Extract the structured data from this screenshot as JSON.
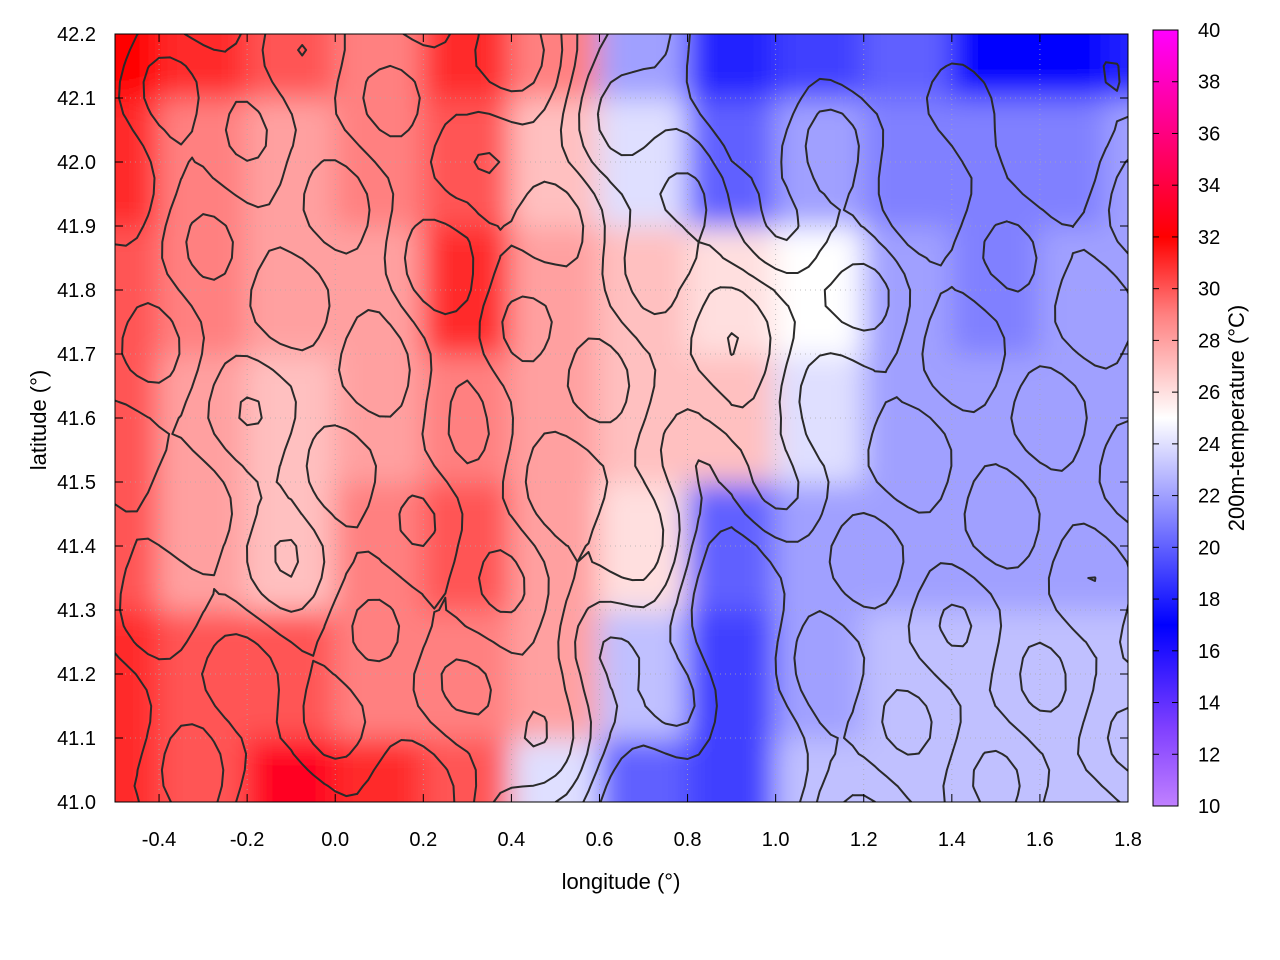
{
  "chart_data": {
    "type": "heatmap",
    "title": "",
    "xlabel": "longitude (°)",
    "ylabel": "latitude (°)",
    "colorbar_label": "200m-temperature (°C)",
    "xlim": [
      -0.5,
      1.8
    ],
    "ylim": [
      41.0,
      42.2
    ],
    "xticks": [
      "-0.4",
      "-0.2",
      "0.0",
      "0.2",
      "0.4",
      "0.6",
      "0.8",
      "1.0",
      "1.2",
      "1.4",
      "1.6",
      "1.8"
    ],
    "yticks": [
      "41.0",
      "41.1",
      "41.2",
      "41.3",
      "41.4",
      "41.5",
      "41.6",
      "41.7",
      "41.8",
      "41.9",
      "42.0",
      "42.1",
      "42.2"
    ],
    "colorbar_range": [
      10,
      40
    ],
    "colorbar_ticks": [
      "10",
      "12",
      "14",
      "16",
      "18",
      "20",
      "22",
      "24",
      "26",
      "28",
      "30",
      "32",
      "34",
      "36",
      "38",
      "40"
    ],
    "colormap": [
      {
        "value": 10,
        "color": "#c080ff"
      },
      {
        "value": 13,
        "color": "#8040ff"
      },
      {
        "value": 17,
        "color": "#0000ff"
      },
      {
        "value": 21,
        "color": "#8080ff"
      },
      {
        "value": 25,
        "color": "#ffffff"
      },
      {
        "value": 29,
        "color": "#ff8080"
      },
      {
        "value": 32,
        "color": "#ff0000"
      },
      {
        "value": 36,
        "color": "#ff0080"
      },
      {
        "value": 40,
        "color": "#ff00ff"
      }
    ],
    "grid": true,
    "grid_style": "dotted",
    "contours": "topography isolines (black)",
    "field_samples": {
      "lon": [
        -0.5,
        -0.3,
        -0.1,
        0.1,
        0.3,
        0.5,
        0.7,
        0.9,
        1.1,
        1.3,
        1.5,
        1.7,
        1.8
      ],
      "lat": [
        41.0,
        41.2,
        41.4,
        41.6,
        41.8,
        42.0,
        42.2
      ],
      "temperature": [
        [
          31,
          30,
          33,
          31,
          30,
          24,
          20,
          19,
          23,
          23,
          23,
          23,
          23
        ],
        [
          31,
          30,
          30,
          29,
          29,
          28,
          23,
          19,
          22,
          23,
          23,
          23,
          23
        ],
        [
          30,
          28,
          27,
          29,
          30,
          28,
          26,
          20,
          22,
          22,
          22,
          22,
          22
        ],
        [
          30,
          28,
          27,
          28,
          29,
          28,
          27,
          27,
          24,
          22,
          22,
          22,
          22
        ],
        [
          30,
          29,
          28,
          28,
          31,
          28,
          27,
          26,
          25,
          22,
          21,
          22,
          22
        ],
        [
          31,
          29,
          28,
          29,
          30,
          27,
          24,
          20,
          22,
          21,
          21,
          21,
          22
        ],
        [
          32,
          31,
          30,
          29,
          31,
          29,
          22,
          18,
          19,
          20,
          17,
          17,
          18
        ]
      ]
    }
  }
}
